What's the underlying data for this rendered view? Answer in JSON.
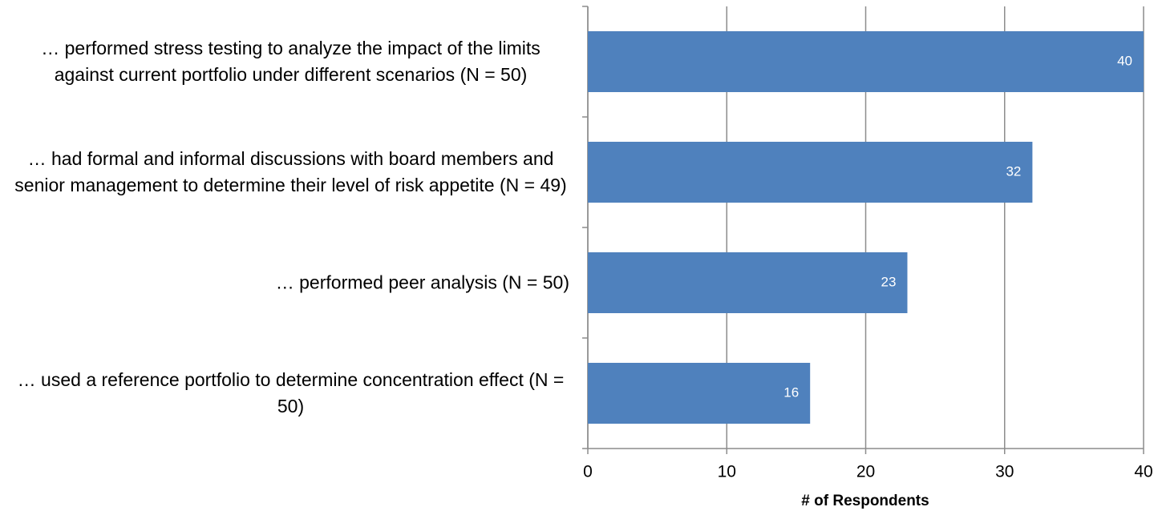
{
  "chart_data": {
    "type": "barh",
    "categories": [
      "… performed stress testing to analyze the impact of the limits against current portfolio under different scenarios (N = 50)",
      "… had formal and informal discussions with board members and senior management to determine their level of risk appetite (N = 49)",
      "… performed peer analysis (N = 50)",
      "… used a reference portfolio to determine concentration effect (N = 50)"
    ],
    "values": [
      40,
      32,
      23,
      16
    ],
    "color": "#4f81bd",
    "xlabel": "# of Respondents",
    "xlim": [
      0,
      40
    ],
    "xticks": [
      0,
      10,
      20,
      30,
      40
    ],
    "grid": true
  }
}
